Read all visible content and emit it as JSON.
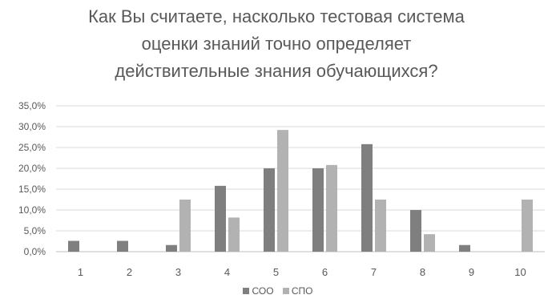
{
  "chart_data": {
    "type": "bar",
    "title_lines": [
      "Как Вы считаете, насколько тестовая система",
      "оценки знаний точно определяет",
      "действительные знания обучающихся?"
    ],
    "categories": [
      "1",
      "2",
      "3",
      "4",
      "5",
      "6",
      "7",
      "8",
      "9",
      "10"
    ],
    "series": [
      {
        "name": "СОО",
        "color": "#7f7f7f",
        "values": [
          2.6,
          2.6,
          1.6,
          15.8,
          20.0,
          20.0,
          25.8,
          10.0,
          1.6,
          0.0
        ]
      },
      {
        "name": "СПО",
        "color": "#b2b2b2",
        "values": [
          0.0,
          0.0,
          12.5,
          8.2,
          29.2,
          20.8,
          12.5,
          4.2,
          0.0,
          12.5
        ]
      }
    ],
    "y_ticks": [
      "0,0%",
      "5,0%",
      "10,0%",
      "15,0%",
      "20,0%",
      "25,0%",
      "30,0%",
      "35,0%"
    ],
    "ylim": [
      0,
      35
    ],
    "grid": true,
    "legend_position": "bottom"
  }
}
